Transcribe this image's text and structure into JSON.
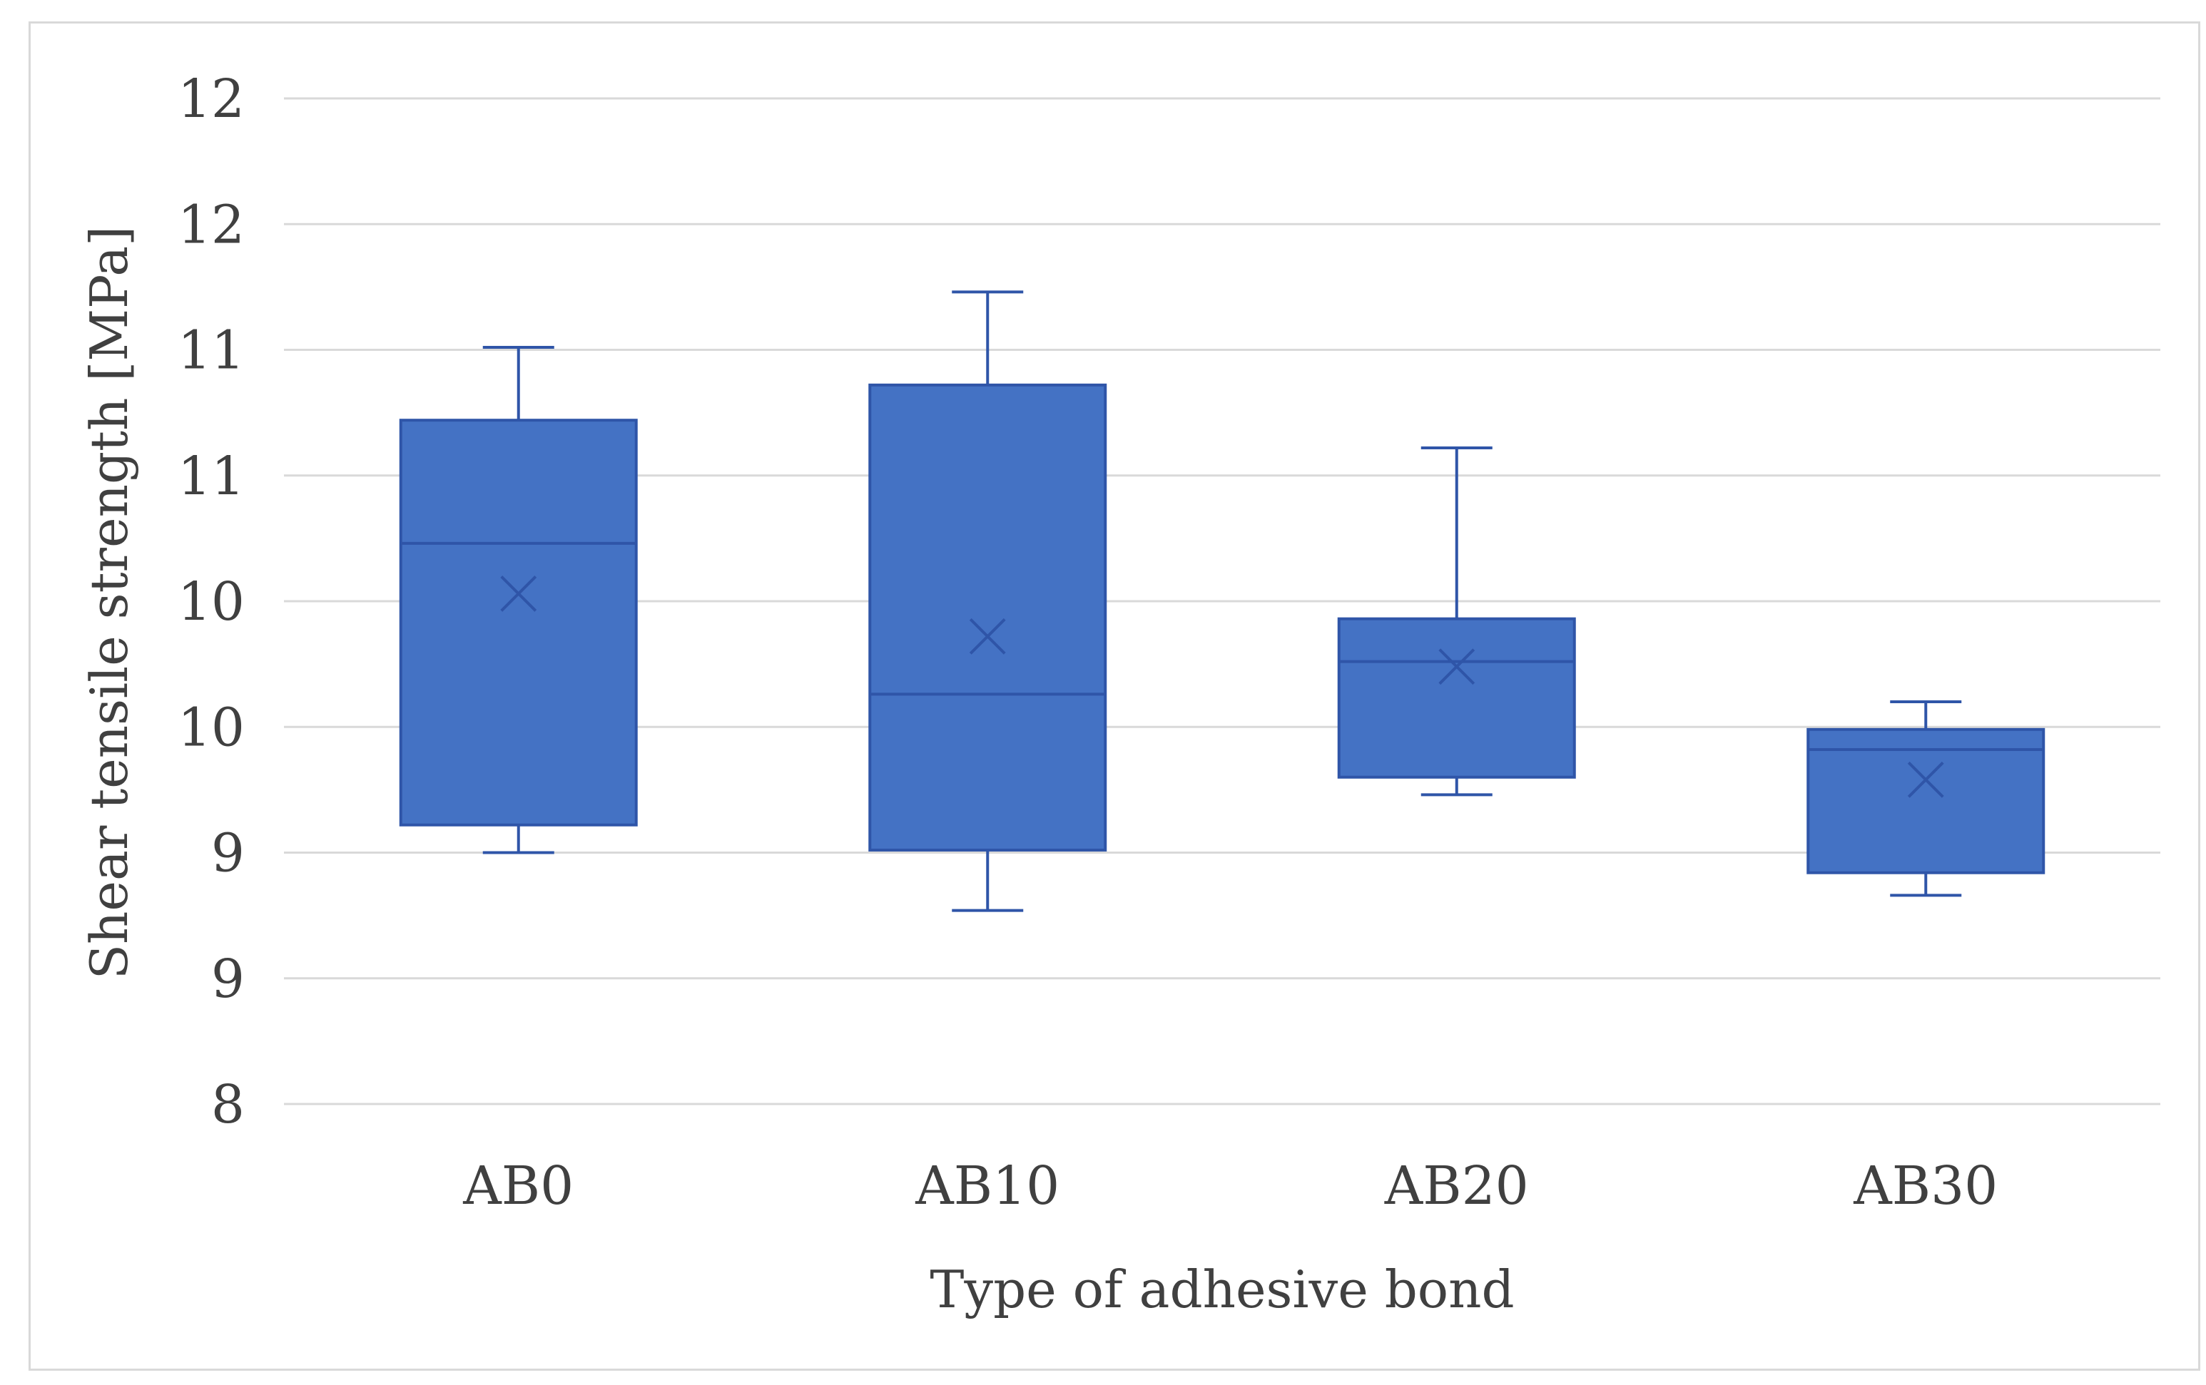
{
  "chart_data": {
    "type": "box",
    "xlabel": "Type of adhesive bond",
    "ylabel": "Shear tensile strength [MPa]",
    "ylim": [
      8,
      12
    ],
    "y_ticks": [
      {
        "value": 8,
        "label": "8"
      },
      {
        "value": 8.5,
        "label": "9"
      },
      {
        "value": 9.0,
        "label": "9"
      },
      {
        "value": 9.5,
        "label": "10"
      },
      {
        "value": 10.0,
        "label": "10"
      },
      {
        "value": 10.5,
        "label": "11"
      },
      {
        "value": 11.0,
        "label": "11"
      },
      {
        "value": 11.5,
        "label": "12"
      },
      {
        "value": 12.0,
        "label": "12"
      }
    ],
    "grid": true,
    "color": "#4472c4",
    "border_color": "#2f55a8",
    "categories": [
      "AB0",
      "AB10",
      "AB20",
      "AB30"
    ],
    "boxes": [
      {
        "category": "AB0",
        "min": 9.0,
        "q1": 9.11,
        "median": 10.23,
        "q3": 10.72,
        "max": 11.01,
        "mean": 10.03
      },
      {
        "category": "AB10",
        "min": 8.77,
        "q1": 9.01,
        "median": 9.63,
        "q3": 10.86,
        "max": 11.23,
        "mean": 9.86
      },
      {
        "category": "AB20",
        "min": 9.23,
        "q1": 9.3,
        "median": 9.76,
        "q3": 9.93,
        "max": 10.61,
        "mean": 9.74
      },
      {
        "category": "AB30",
        "min": 8.83,
        "q1": 8.92,
        "median": 9.41,
        "q3": 9.49,
        "max": 9.6,
        "mean": 9.29
      }
    ]
  }
}
